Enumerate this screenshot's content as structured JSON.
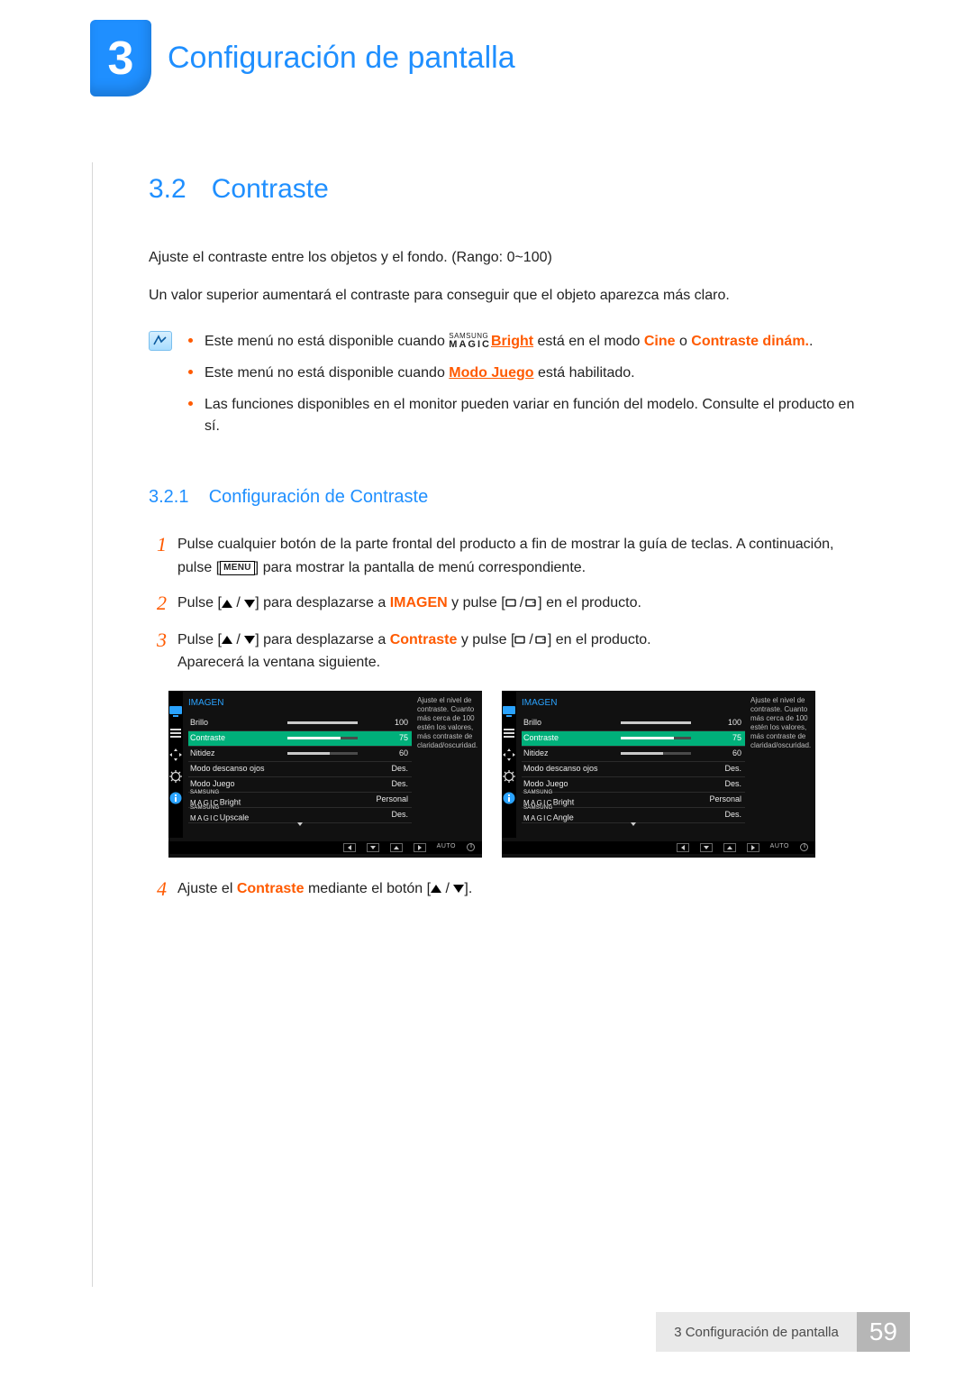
{
  "colors": {
    "primary_blue": "#1f8fff",
    "accent_orange": "#ff5a00",
    "osd_highlight": "#00b07a",
    "footer_label_bg": "#e9e9e9",
    "footer_page_bg": "#b6b6b6",
    "text": "#222222"
  },
  "chapter": {
    "number": "3",
    "title": "Configuración de pantalla"
  },
  "section": {
    "number": "3.2",
    "title": "Contraste",
    "para1": "Ajuste el contraste entre los objetos y el fondo. (Rango: 0~100)",
    "para2": "Un valor superior aumentará el contraste para conseguir que el objeto aparezca más claro."
  },
  "notes": {
    "item1": {
      "pre": "Este menú no está disponible cuando ",
      "magic_top": "SAMSUNG",
      "magic_bot": "MAGIC",
      "magic_suffix": "Bright",
      "mid": " está en el modo ",
      "cine": "Cine",
      "or": " o ",
      "dinam": "Contraste dinám.",
      "dot": "."
    },
    "item2": {
      "pre": "Este menú no está disponible cuando ",
      "link": "Modo Juego",
      "post": " está habilitado."
    },
    "item3": "Las funciones disponibles en el monitor pueden variar en función del modelo. Consulte el producto en sí."
  },
  "subsection": {
    "number": "3.2.1",
    "title": "Configuración de Contraste"
  },
  "steps": {
    "s1": {
      "n": "1",
      "a": "Pulse cualquier botón de la parte frontal del producto a fin de mostrar la guía de teclas. A continuación, pulse [",
      "menu": "MENU",
      "b": "] para mostrar la pantalla de menú correspondiente."
    },
    "s2": {
      "n": "2",
      "a": "Pulse [",
      "b": "] para desplazarse a ",
      "imagen": "IMAGEN",
      "c": " y pulse [",
      "d": "] en el producto."
    },
    "s3": {
      "n": "3",
      "a": "Pulse [",
      "b": "] para desplazarse a ",
      "contraste": "Contraste",
      "c": " y pulse [",
      "d": "] en el producto.",
      "e": "Aparecerá la ventana siguiente."
    },
    "s4": {
      "n": "4",
      "a": "Ajuste el ",
      "contraste": "Contraste",
      "b": " mediante el botón [",
      "c": "]."
    }
  },
  "osd": {
    "title": "IMAGEN",
    "desc": "Ajuste el nivel de contraste. Cuanto más cerca de 100 estén los valores, más contraste de claridad/oscuridad.",
    "magic_top": "SAMSUNG",
    "magic_bot": "MAGIC",
    "rows": [
      {
        "label": "Brillo",
        "value": "100",
        "bar_pct": 100,
        "selected": false
      },
      {
        "label": "Contraste",
        "value": "75",
        "bar_pct": 75,
        "selected": true
      },
      {
        "label": "Nitidez",
        "value": "60",
        "bar_pct": 60,
        "selected": false
      },
      {
        "label": "Modo descanso ojos",
        "value": "Des.",
        "bar_pct": null,
        "selected": false
      },
      {
        "label": "Modo Juego",
        "value": "Des.",
        "bar_pct": null,
        "selected": false
      },
      {
        "label": "_MAGIC_Bright",
        "value": "Personal",
        "bar_pct": null,
        "selected": false
      },
      {
        "label": "_MAGIC_Upscale",
        "value": "Des.",
        "bar_pct": null,
        "selected": false
      }
    ],
    "rows_variant_last": {
      "label": "_MAGIC_Angle",
      "value": "Des."
    },
    "footer_auto": "AUTO"
  },
  "footer": {
    "label": "3 Configuración de pantalla",
    "page": "59"
  }
}
